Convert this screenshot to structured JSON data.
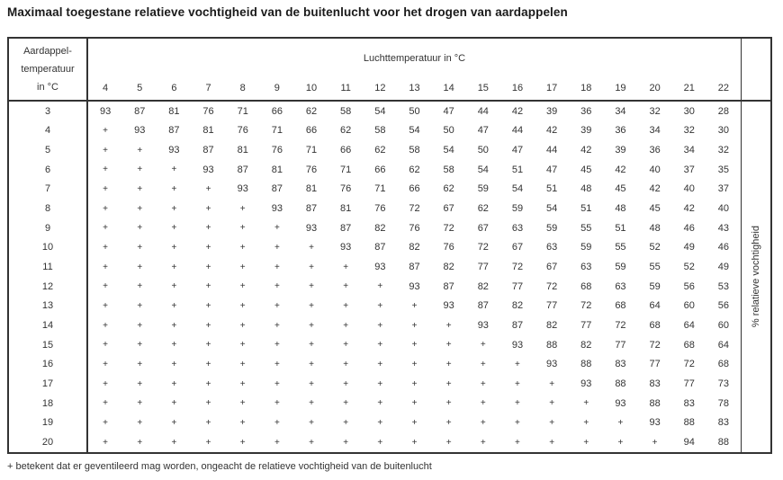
{
  "title": "Maximaal toegestane relatieve vochtigheid van de buitenlucht voor het drogen van aardappelen",
  "footnote": "+ betekent dat er geventileerd mag worden, ongeacht de relatieve vochtigheid van de buitenlucht",
  "colors": {
    "background": "#ffffff",
    "text": "#333333",
    "border": "#333333"
  },
  "table": {
    "row_header_lines": [
      "Aardappel-",
      "temperatuur",
      "in °C"
    ],
    "col_group_title": "Luchttemperatuur in °C",
    "right_axis_label": "% relatieve vochtigheid"
  },
  "chart_data": {
    "type": "table",
    "title": "Maximaal toegestane relatieve vochtigheid van de buitenlucht voor het drogen van aardappelen",
    "xlabel": "Luchttemperatuur in °C",
    "ylabel": "Aardappeltemperatuur in °C",
    "value_unit": "% relatieve vochtigheid",
    "categories": [
      "4",
      "5",
      "6",
      "7",
      "8",
      "9",
      "10",
      "11",
      "12",
      "13",
      "14",
      "15",
      "16",
      "17",
      "18",
      "19",
      "20",
      "21",
      "22"
    ],
    "rows": [
      {
        "label": "3",
        "values": [
          "93",
          "87",
          "81",
          "76",
          "71",
          "66",
          "62",
          "58",
          "54",
          "50",
          "47",
          "44",
          "42",
          "39",
          "36",
          "34",
          "32",
          "30",
          "28"
        ]
      },
      {
        "label": "4",
        "values": [
          "+",
          "93",
          "87",
          "81",
          "76",
          "71",
          "66",
          "62",
          "58",
          "54",
          "50",
          "47",
          "44",
          "42",
          "39",
          "36",
          "34",
          "32",
          "30"
        ]
      },
      {
        "label": "5",
        "values": [
          "+",
          "+",
          "93",
          "87",
          "81",
          "76",
          "71",
          "66",
          "62",
          "58",
          "54",
          "50",
          "47",
          "44",
          "42",
          "39",
          "36",
          "34",
          "32"
        ]
      },
      {
        "label": "6",
        "values": [
          "+",
          "+",
          "+",
          "93",
          "87",
          "81",
          "76",
          "71",
          "66",
          "62",
          "58",
          "54",
          "51",
          "47",
          "45",
          "42",
          "40",
          "37",
          "35"
        ]
      },
      {
        "label": "7",
        "values": [
          "+",
          "+",
          "+",
          "+",
          "93",
          "87",
          "81",
          "76",
          "71",
          "66",
          "62",
          "59",
          "54",
          "51",
          "48",
          "45",
          "42",
          "40",
          "37"
        ]
      },
      {
        "label": "8",
        "values": [
          "+",
          "+",
          "+",
          "+",
          "+",
          "93",
          "87",
          "81",
          "76",
          "72",
          "67",
          "62",
          "59",
          "54",
          "51",
          "48",
          "45",
          "42",
          "40"
        ]
      },
      {
        "label": "9",
        "values": [
          "+",
          "+",
          "+",
          "+",
          "+",
          "+",
          "93",
          "87",
          "82",
          "76",
          "72",
          "67",
          "63",
          "59",
          "55",
          "51",
          "48",
          "46",
          "43"
        ]
      },
      {
        "label": "10",
        "values": [
          "+",
          "+",
          "+",
          "+",
          "+",
          "+",
          "+",
          "93",
          "87",
          "82",
          "76",
          "72",
          "67",
          "63",
          "59",
          "55",
          "52",
          "49",
          "46"
        ]
      },
      {
        "label": "11",
        "values": [
          "+",
          "+",
          "+",
          "+",
          "+",
          "+",
          "+",
          "+",
          "93",
          "87",
          "82",
          "77",
          "72",
          "67",
          "63",
          "59",
          "55",
          "52",
          "49"
        ]
      },
      {
        "label": "12",
        "values": [
          "+",
          "+",
          "+",
          "+",
          "+",
          "+",
          "+",
          "+",
          "+",
          "93",
          "87",
          "82",
          "77",
          "72",
          "68",
          "63",
          "59",
          "56",
          "53"
        ]
      },
      {
        "label": "13",
        "values": [
          "+",
          "+",
          "+",
          "+",
          "+",
          "+",
          "+",
          "+",
          "+",
          "+",
          "93",
          "87",
          "82",
          "77",
          "72",
          "68",
          "64",
          "60",
          "56"
        ]
      },
      {
        "label": "14",
        "values": [
          "+",
          "+",
          "+",
          "+",
          "+",
          "+",
          "+",
          "+",
          "+",
          "+",
          "+",
          "93",
          "87",
          "82",
          "77",
          "72",
          "68",
          "64",
          "60"
        ]
      },
      {
        "label": "15",
        "values": [
          "+",
          "+",
          "+",
          "+",
          "+",
          "+",
          "+",
          "+",
          "+",
          "+",
          "+",
          "+",
          "93",
          "88",
          "82",
          "77",
          "72",
          "68",
          "64"
        ]
      },
      {
        "label": "16",
        "values": [
          "+",
          "+",
          "+",
          "+",
          "+",
          "+",
          "+",
          "+",
          "+",
          "+",
          "+",
          "+",
          "+",
          "93",
          "88",
          "83",
          "77",
          "72",
          "68"
        ]
      },
      {
        "label": "17",
        "values": [
          "+",
          "+",
          "+",
          "+",
          "+",
          "+",
          "+",
          "+",
          "+",
          "+",
          "+",
          "+",
          "+",
          "+",
          "93",
          "88",
          "83",
          "77",
          "73"
        ]
      },
      {
        "label": "18",
        "values": [
          "+",
          "+",
          "+",
          "+",
          "+",
          "+",
          "+",
          "+",
          "+",
          "+",
          "+",
          "+",
          "+",
          "+",
          "+",
          "93",
          "88",
          "83",
          "78"
        ]
      },
      {
        "label": "19",
        "values": [
          "+",
          "+",
          "+",
          "+",
          "+",
          "+",
          "+",
          "+",
          "+",
          "+",
          "+",
          "+",
          "+",
          "+",
          "+",
          "+",
          "93",
          "88",
          "83"
        ]
      },
      {
        "label": "20",
        "values": [
          "+",
          "+",
          "+",
          "+",
          "+",
          "+",
          "+",
          "+",
          "+",
          "+",
          "+",
          "+",
          "+",
          "+",
          "+",
          "+",
          "+",
          "94",
          "88"
        ]
      }
    ]
  }
}
